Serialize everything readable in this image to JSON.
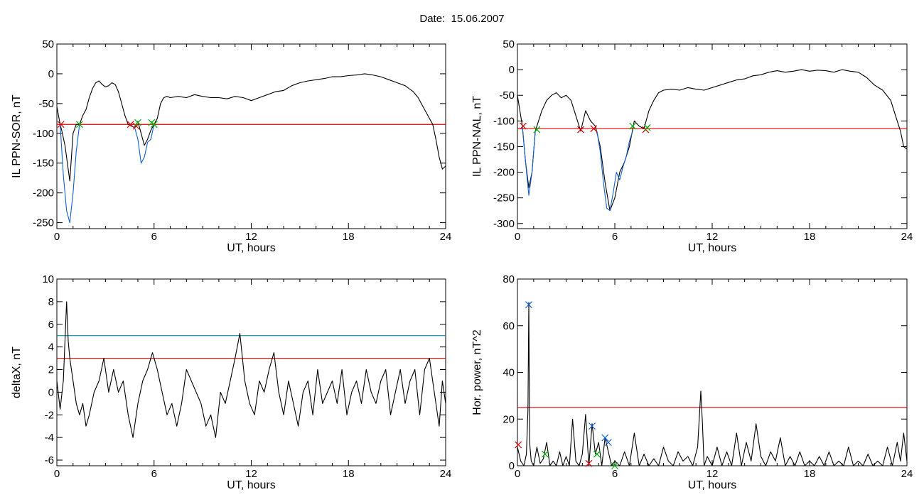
{
  "figure": {
    "title": "Date:  15.06.2007"
  },
  "chart_data": [
    {
      "type": "line",
      "ylabel": "IL PPN-SOR, nT",
      "xlabel": "UT, hours",
      "xlim": [
        0,
        24
      ],
      "ylim": [
        -260,
        50
      ],
      "xticks": [
        0,
        6,
        12,
        18,
        24
      ],
      "yticks": [
        -250,
        -200,
        -150,
        -100,
        -50,
        0,
        50
      ],
      "threshold": {
        "value": -85,
        "color": "#e00000"
      },
      "series": [
        {
          "color": "#000000",
          "x": [
            0,
            0.1,
            0.2,
            0.3,
            0.5,
            0.8,
            1.0,
            1.2,
            1.4,
            1.6,
            1.8,
            2.0,
            2.2,
            2.4,
            2.6,
            2.8,
            3.0,
            3.2,
            3.4,
            3.6,
            3.8,
            4.0,
            4.2,
            4.4,
            4.6,
            4.8,
            5.0,
            5.2,
            5.4,
            5.6,
            5.8,
            6.0,
            6.2,
            6.4,
            6.6,
            6.8,
            7.0,
            7.5,
            8.0,
            8.5,
            9.0,
            9.5,
            10.0,
            10.5,
            11.0,
            11.5,
            12.0,
            12.5,
            13.0,
            13.5,
            14.0,
            14.5,
            15.0,
            15.5,
            16.0,
            16.5,
            17.0,
            17.5,
            18.0,
            18.5,
            19.0,
            19.5,
            20.0,
            20.5,
            21.0,
            21.5,
            22.0,
            22.3,
            22.6,
            22.9,
            23.2,
            23.4,
            23.6,
            23.8,
            24.0
          ],
          "y": [
            -55,
            -70,
            -85,
            -95,
            -120,
            -180,
            -100,
            -85,
            -85,
            -70,
            -60,
            -40,
            -25,
            -15,
            -12,
            -18,
            -22,
            -20,
            -15,
            -18,
            -30,
            -50,
            -70,
            -85,
            -88,
            -90,
            -80,
            -100,
            -120,
            -110,
            -95,
            -85,
            -75,
            -50,
            -40,
            -38,
            -40,
            -38,
            -40,
            -35,
            -38,
            -40,
            -40,
            -42,
            -38,
            -40,
            -45,
            -40,
            -35,
            -30,
            -28,
            -20,
            -15,
            -12,
            -10,
            -8,
            -5,
            -5,
            -3,
            -2,
            0,
            -2,
            -5,
            -10,
            -15,
            -20,
            -30,
            -40,
            -55,
            -70,
            -85,
            -110,
            -140,
            -160,
            -155
          ]
        },
        {
          "color": "#1060d0",
          "x": [
            0.2,
            0.4,
            0.6,
            0.8,
            1.0,
            1.2,
            1.4
          ],
          "y": [
            -85,
            -170,
            -230,
            -250,
            -200,
            -130,
            -85
          ]
        },
        {
          "color": "#1060d0",
          "x": [
            4.8,
            5.0,
            5.2,
            5.4,
            5.6,
            5.8,
            6.0
          ],
          "y": [
            -90,
            -110,
            -150,
            -140,
            -115,
            -110,
            -85
          ]
        }
      ],
      "markers": [
        {
          "x": 0.25,
          "y": -85,
          "color": "#e00000"
        },
        {
          "x": 1.4,
          "y": -85,
          "color": "#00b000"
        },
        {
          "x": 4.55,
          "y": -85,
          "color": "#e00000"
        },
        {
          "x": 4.9,
          "y": -88,
          "color": "#e00000"
        },
        {
          "x": 5.0,
          "y": -82,
          "color": "#00b000"
        },
        {
          "x": 5.85,
          "y": -82,
          "color": "#00b000"
        },
        {
          "x": 6.0,
          "y": -85,
          "color": "#00b000"
        }
      ]
    },
    {
      "type": "line",
      "ylabel": "IL PPN-NAL, nT",
      "xlabel": "UT, hours",
      "xlim": [
        0,
        24
      ],
      "ylim": [
        -310,
        50
      ],
      "xticks": [
        0,
        6,
        12,
        18,
        24
      ],
      "yticks": [
        -300,
        -250,
        -200,
        -150,
        -100,
        -50,
        0,
        50
      ],
      "threshold": {
        "value": -115,
        "color": "#e00000"
      },
      "series": [
        {
          "color": "#000000",
          "x": [
            0,
            0.1,
            0.3,
            0.5,
            0.7,
            0.9,
            1.1,
            1.3,
            1.5,
            1.8,
            2.1,
            2.4,
            2.7,
            3.0,
            3.3,
            3.6,
            3.9,
            4.2,
            4.5,
            4.8,
            5.1,
            5.4,
            5.7,
            6.0,
            6.3,
            6.6,
            6.9,
            7.2,
            7.5,
            7.8,
            8.1,
            8.4,
            8.7,
            9.0,
            9.5,
            10.0,
            10.5,
            11.0,
            11.5,
            12.0,
            12.5,
            13.0,
            13.5,
            14.0,
            14.5,
            15.0,
            15.5,
            16.0,
            16.5,
            17.0,
            17.5,
            18.0,
            18.5,
            19.0,
            19.5,
            20.0,
            20.5,
            21.0,
            21.5,
            22.0,
            22.5,
            23.0,
            23.3,
            23.6,
            23.8,
            24.0
          ],
          "y": [
            -50,
            -70,
            -110,
            -180,
            -230,
            -200,
            -120,
            -100,
            -80,
            -60,
            -50,
            -45,
            -55,
            -50,
            -60,
            -90,
            -120,
            -80,
            -100,
            -110,
            -150,
            -220,
            -275,
            -250,
            -200,
            -180,
            -150,
            -100,
            -110,
            -115,
            -80,
            -60,
            -45,
            -40,
            -38,
            -40,
            -35,
            -38,
            -40,
            -35,
            -30,
            -25,
            -20,
            -18,
            -12,
            -10,
            -5,
            -2,
            -5,
            -3,
            0,
            -3,
            -1,
            -2,
            -5,
            0,
            -3,
            -5,
            -15,
            -30,
            -40,
            -60,
            -90,
            -120,
            -150,
            -155
          ]
        },
        {
          "color": "#1060d0",
          "x": [
            0.3,
            0.5,
            0.7,
            0.9,
            1.1
          ],
          "y": [
            -110,
            -180,
            -245,
            -200,
            -120
          ]
        },
        {
          "color": "#1060d0",
          "x": [
            4.9,
            5.1,
            5.3,
            5.5,
            5.7,
            5.9,
            6.1,
            6.3,
            6.5,
            6.7,
            6.9,
            7.1
          ],
          "y": [
            -120,
            -160,
            -220,
            -270,
            -275,
            -240,
            -200,
            -215,
            -190,
            -170,
            -140,
            -120
          ]
        }
      ],
      "markers": [
        {
          "x": 0.35,
          "y": -110,
          "color": "#e00000"
        },
        {
          "x": 1.2,
          "y": -117,
          "color": "#00b000"
        },
        {
          "x": 3.9,
          "y": -117,
          "color": "#e00000"
        },
        {
          "x": 4.7,
          "y": -115,
          "color": "#e00000"
        },
        {
          "x": 7.1,
          "y": -110,
          "color": "#00b000"
        },
        {
          "x": 7.9,
          "y": -117,
          "color": "#e00000"
        },
        {
          "x": 8.0,
          "y": -113,
          "color": "#00b000"
        }
      ]
    },
    {
      "type": "line",
      "ylabel": "deltaX, nT",
      "xlabel": "UT, hours",
      "xlim": [
        0,
        24
      ],
      "ylim": [
        -6.5,
        10
      ],
      "xticks": [
        0,
        6,
        12,
        18,
        24
      ],
      "yticks": [
        -6,
        -4,
        -2,
        0,
        2,
        4,
        6,
        8,
        10
      ],
      "thresholds": [
        {
          "value": 5,
          "color": "#0090a0"
        },
        {
          "value": 3,
          "color": "#e00000"
        }
      ],
      "series": [
        {
          "color": "#000000",
          "x": [
            0,
            0.2,
            0.4,
            0.6,
            0.7,
            0.8,
            1.0,
            1.2,
            1.4,
            1.6,
            1.8,
            2.0,
            2.3,
            2.6,
            2.9,
            3.2,
            3.5,
            3.8,
            4.1,
            4.4,
            4.7,
            5.0,
            5.3,
            5.6,
            5.9,
            6.2,
            6.5,
            6.8,
            7.1,
            7.4,
            7.7,
            8.0,
            8.3,
            8.6,
            8.9,
            9.2,
            9.5,
            9.8,
            10.1,
            10.4,
            10.7,
            11.0,
            11.3,
            11.6,
            11.9,
            12.2,
            12.5,
            12.8,
            13.1,
            13.4,
            13.7,
            14.0,
            14.3,
            14.6,
            14.9,
            15.2,
            15.5,
            15.8,
            16.1,
            16.4,
            16.7,
            17.0,
            17.3,
            17.6,
            17.9,
            18.2,
            18.5,
            18.8,
            19.1,
            19.4,
            19.7,
            20.0,
            20.3,
            20.6,
            20.9,
            21.2,
            21.5,
            21.8,
            22.1,
            22.4,
            22.7,
            23.0,
            23.3,
            23.6,
            23.8,
            24.0
          ],
          "y": [
            1,
            -1.5,
            1,
            8,
            4.5,
            3,
            1,
            -1,
            -2,
            -1,
            -3,
            -2,
            0,
            1,
            3,
            0,
            2,
            0,
            1,
            -2,
            -4,
            -1,
            1,
            2,
            3.5,
            2,
            0,
            -2,
            -1,
            -3,
            -1,
            2,
            1,
            0,
            -1,
            -3,
            -2,
            -4,
            0,
            -1,
            1,
            3,
            5.2,
            1,
            -1,
            -2,
            1,
            0,
            2,
            3.5,
            0,
            -2,
            1,
            -1,
            -3,
            0,
            1,
            -2,
            2,
            -1,
            0,
            1,
            -1,
            2,
            -2,
            0,
            1,
            -1,
            2,
            0,
            -1,
            1,
            2,
            -2,
            0,
            2,
            -1,
            1,
            2,
            -2,
            2,
            3,
            0,
            -3,
            1,
            -1
          ]
        }
      ],
      "markers": []
    },
    {
      "type": "line",
      "ylabel": "Hor. power, nT^2",
      "xlabel": "UT, hours",
      "xlim": [
        0,
        24
      ],
      "ylim": [
        0,
        80
      ],
      "xticks": [
        0,
        6,
        12,
        18,
        24
      ],
      "yticks": [
        0,
        20,
        40,
        60,
        80
      ],
      "threshold": {
        "value": 25,
        "color": "#e00000"
      },
      "series": [
        {
          "color": "#000000",
          "x": [
            0,
            0.2,
            0.4,
            0.55,
            0.65,
            0.7,
            0.75,
            0.85,
            1.0,
            1.2,
            1.4,
            1.6,
            1.8,
            2.0,
            2.2,
            2.4,
            2.6,
            2.8,
            3.0,
            3.2,
            3.4,
            3.6,
            3.8,
            4.0,
            4.2,
            4.4,
            4.6,
            4.8,
            5.0,
            5.2,
            5.4,
            5.6,
            5.8,
            6.0,
            6.3,
            6.6,
            6.9,
            7.2,
            7.5,
            7.8,
            8.1,
            8.4,
            8.7,
            9.0,
            9.3,
            9.6,
            9.9,
            10.2,
            10.5,
            10.8,
            11.1,
            11.3,
            11.4,
            11.5,
            11.7,
            12.0,
            12.3,
            12.6,
            12.9,
            13.2,
            13.5,
            13.8,
            14.1,
            14.4,
            14.7,
            15.0,
            15.3,
            15.6,
            15.9,
            16.2,
            16.5,
            16.8,
            17.1,
            17.4,
            17.7,
            18.0,
            18.3,
            18.6,
            18.9,
            19.2,
            19.5,
            19.8,
            20.1,
            20.4,
            20.7,
            21.0,
            21.3,
            21.6,
            21.9,
            22.2,
            22.5,
            22.8,
            23.1,
            23.4,
            23.6,
            23.8,
            24.0
          ],
          "y": [
            8,
            2,
            0,
            5,
            24,
            70,
            10,
            2,
            0,
            8,
            1,
            3,
            10,
            0,
            2,
            0,
            6,
            0,
            4,
            0,
            20,
            2,
            0,
            5,
            22,
            0,
            18,
            5,
            10,
            0,
            12,
            6,
            0,
            2,
            0,
            6,
            0,
            14,
            0,
            5,
            0,
            3,
            0,
            8,
            2,
            0,
            6,
            2,
            4,
            0,
            8,
            32,
            18,
            0,
            4,
            0,
            8,
            0,
            6,
            0,
            14,
            0,
            10,
            2,
            18,
            4,
            0,
            6,
            2,
            12,
            0,
            4,
            0,
            6,
            0,
            2,
            0,
            4,
            0,
            6,
            0,
            2,
            0,
            8,
            0,
            2,
            0,
            5,
            0,
            2,
            0,
            8,
            0,
            10,
            2,
            14,
            2
          ]
        }
      ],
      "markers": [
        {
          "x": 0.05,
          "y": 9,
          "color": "#e00000"
        },
        {
          "x": 0.7,
          "y": 69,
          "color": "#1060d0"
        },
        {
          "x": 1.7,
          "y": 5,
          "color": "#00b000"
        },
        {
          "x": 4.4,
          "y": 1,
          "color": "#e00000"
        },
        {
          "x": 4.6,
          "y": 17,
          "color": "#1060d0"
        },
        {
          "x": 4.9,
          "y": 5,
          "color": "#00b000"
        },
        {
          "x": 5.4,
          "y": 12,
          "color": "#1060d0"
        },
        {
          "x": 5.6,
          "y": 10,
          "color": "#1060d0"
        },
        {
          "x": 6.0,
          "y": 0,
          "color": "#00b000"
        }
      ]
    }
  ]
}
